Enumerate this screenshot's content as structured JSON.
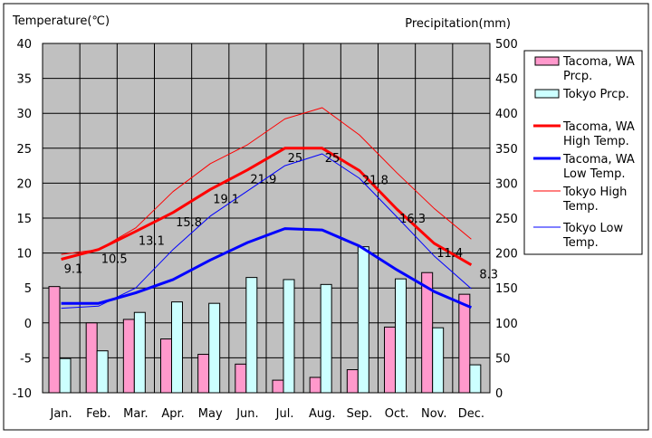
{
  "chart_data": {
    "type": "bar+line",
    "left_axis_title": "Temperature(℃)",
    "right_axis_title": "Precipitation(mm)",
    "categories": [
      "Jan.",
      "Feb.",
      "Mar.",
      "Apr.",
      "May",
      "Jun.",
      "Jul.",
      "Aug.",
      "Sep.",
      "Oct.",
      "Nov.",
      "Dec."
    ],
    "temp_ylim": [
      -10,
      40
    ],
    "temp_ticks": [
      "40",
      "35",
      "30",
      "25",
      "20",
      "15",
      "10",
      "5",
      "0",
      "-5",
      "-10"
    ],
    "precip_ylim": [
      0,
      500
    ],
    "precip_ticks": [
      "500",
      "450",
      "400",
      "350",
      "300",
      "250",
      "200",
      "150",
      "100",
      "50",
      "0"
    ],
    "bar_series": [
      {
        "name": "Tacoma, WA Prcp.",
        "color": "#ff99cc",
        "values": [
          152,
          100,
          105,
          77,
          55,
          41,
          18,
          22,
          33,
          94,
          172,
          141
        ]
      },
      {
        "name": "Tokyo Prcp.",
        "color": "#ccffff",
        "values": [
          49,
          60,
          115,
          130,
          128,
          165,
          162,
          155,
          209,
          163,
          93,
          40
        ]
      }
    ],
    "line_series": [
      {
        "name": "Tacoma, WA High Temp.",
        "color": "#ff0000",
        "width": "thick",
        "values": [
          9.1,
          10.5,
          13.1,
          15.8,
          19.1,
          21.9,
          25,
          25,
          21.8,
          16.3,
          11.4,
          8.3
        ],
        "labels": [
          "9.1",
          "10.5",
          "13.1",
          "15.8",
          "19.1",
          "21.9",
          "25",
          "25",
          "21.8",
          "16.3",
          "11.4",
          "8.3"
        ]
      },
      {
        "name": "Tacoma, WA Low Temp.",
        "color": "#0000ff",
        "width": "thick",
        "values": [
          2.8,
          2.8,
          4.3,
          6.2,
          9,
          11.5,
          13.5,
          13.3,
          11,
          7.6,
          4.5,
          2.2
        ]
      },
      {
        "name": "Tokyo High Temp.",
        "color": "#ff0000",
        "width": "thin",
        "values": [
          9.8,
          10.5,
          13.6,
          18.8,
          22.8,
          25.5,
          29.2,
          30.8,
          26.9,
          21.5,
          16.4,
          12
        ]
      },
      {
        "name": "Tokyo Low Temp.",
        "color": "#0000ff",
        "width": "thin",
        "values": [
          2.1,
          2.4,
          5,
          10.5,
          15.3,
          18.9,
          22.5,
          24.2,
          20.7,
          15.2,
          9.6,
          4.9
        ]
      }
    ],
    "legend_lines": [
      [
        "Tacoma, WA",
        "Prcp."
      ],
      [
        "Tokyo Prcp."
      ],
      [
        "Tacoma, WA",
        "High Temp."
      ],
      [
        "Tacoma, WA",
        "Low Temp."
      ],
      [
        "Tokyo High",
        "Temp."
      ],
      [
        "Tokyo Low",
        "Temp."
      ]
    ],
    "legend_position": "right",
    "plot_background": "#c0c0c0",
    "grid": true
  }
}
